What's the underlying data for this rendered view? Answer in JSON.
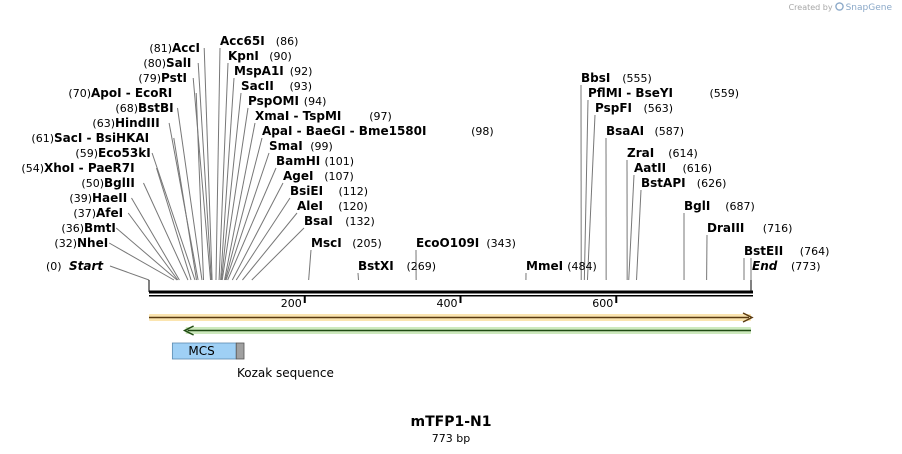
{
  "credit": {
    "prefix": "Created by",
    "brand": "SnapGene"
  },
  "title": "mTFP1-N1",
  "subtitle": "773 bp",
  "map": {
    "length": 773,
    "ticks": [
      "200",
      "400",
      "600"
    ],
    "start": {
      "label": "Start",
      "pos": "(0)"
    },
    "end": {
      "label": "End",
      "pos": "(773)"
    },
    "sites": [
      {
        "id": "NheI",
        "parts": [
          {
            "name": "NheI"
          }
        ],
        "posText": "(32)",
        "bp": 32
      },
      {
        "id": "BmtI",
        "parts": [
          {
            "name": "BmtI"
          }
        ],
        "posText": "(36)",
        "bp": 36
      },
      {
        "id": "AfeI",
        "parts": [
          {
            "name": "AfeI"
          }
        ],
        "posText": "(37)",
        "bp": 37
      },
      {
        "id": "HaeII",
        "parts": [
          {
            "name": "HaeII"
          }
        ],
        "posText": "(39)",
        "bp": 39
      },
      {
        "id": "BglII",
        "parts": [
          {
            "name": "BglII"
          }
        ],
        "posText": "(50)",
        "bp": 50
      },
      {
        "id": "XhoI",
        "parts": [
          {
            "name": "XhoI"
          },
          {
            "name": "PaeR7I"
          }
        ],
        "posText": "(54)",
        "bp": 54
      },
      {
        "id": "Eco53kI",
        "parts": [
          {
            "name": "Eco53kI"
          }
        ],
        "posText": "(59)",
        "bp": 59
      },
      {
        "id": "SacI",
        "parts": [
          {
            "name": "SacI"
          },
          {
            "name": "BsiHKAI"
          }
        ],
        "posText": "(61)",
        "bp": 61
      },
      {
        "id": "HindIII",
        "parts": [
          {
            "name": "HindIII"
          }
        ],
        "posText": "(63)",
        "bp": 63
      },
      {
        "id": "BstBI",
        "parts": [
          {
            "name": "BstBI"
          }
        ],
        "posText": "(68)",
        "bp": 68
      },
      {
        "id": "ApoI",
        "parts": [
          {
            "name": "ApoI"
          },
          {
            "name": "EcoRI"
          }
        ],
        "posText": "(70)",
        "bp": 70
      },
      {
        "id": "PstI",
        "parts": [
          {
            "name": "PstI"
          }
        ],
        "posText": "(79)",
        "bp": 79
      },
      {
        "id": "SalI",
        "parts": [
          {
            "name": "SalI"
          }
        ],
        "posText": "(80)",
        "bp": 80
      },
      {
        "id": "AccI",
        "parts": [
          {
            "name": "AccI"
          }
        ],
        "posText": "(81)",
        "bp": 81
      },
      {
        "id": "Acc65I",
        "parts": [
          {
            "name": "Acc65I"
          }
        ],
        "posText": "(86)",
        "bp": 86
      },
      {
        "id": "KpnI",
        "parts": [
          {
            "name": "KpnI"
          }
        ],
        "posText": "(90)",
        "bp": 90
      },
      {
        "id": "MspA1I",
        "parts": [
          {
            "name": "MspA1I"
          }
        ],
        "posText": "(92)",
        "bp": 92
      },
      {
        "id": "SacII",
        "parts": [
          {
            "name": "SacII"
          }
        ],
        "posText": "(93)",
        "bp": 93
      },
      {
        "id": "PspOMI",
        "parts": [
          {
            "name": "PspOMI"
          }
        ],
        "posText": "(94)",
        "bp": 94
      },
      {
        "id": "XmaI",
        "parts": [
          {
            "name": "XmaI"
          },
          {
            "name": "TspMI"
          }
        ],
        "posText": "(97)",
        "bp": 97
      },
      {
        "id": "ApaI",
        "parts": [
          {
            "name": "ApaI"
          },
          {
            "name": "BaeGI"
          },
          {
            "name": "Bme1580I"
          }
        ],
        "posText": "(98)",
        "bp": 98
      },
      {
        "id": "SmaI",
        "parts": [
          {
            "name": "SmaI"
          }
        ],
        "posText": "(99)",
        "bp": 99
      },
      {
        "id": "BamHI",
        "parts": [
          {
            "name": "BamHI"
          }
        ],
        "posText": "(101)",
        "bp": 101
      },
      {
        "id": "AgeI",
        "parts": [
          {
            "name": "AgeI"
          }
        ],
        "posText": "(107)",
        "bp": 107
      },
      {
        "id": "BsiEI",
        "parts": [
          {
            "name": "BsiEI"
          }
        ],
        "posText": "(112)",
        "bp": 112
      },
      {
        "id": "AleI",
        "parts": [
          {
            "name": "AleI"
          }
        ],
        "posText": "(120)",
        "bp": 120
      },
      {
        "id": "BsaI",
        "parts": [
          {
            "name": "BsaI"
          }
        ],
        "posText": "(132)",
        "bp": 132
      },
      {
        "id": "MscI",
        "parts": [
          {
            "name": "MscI"
          }
        ],
        "posText": "(205)",
        "bp": 205
      },
      {
        "id": "BstXI",
        "parts": [
          {
            "name": "BstXI"
          }
        ],
        "posText": "(269)",
        "bp": 269
      },
      {
        "id": "EcoO109I",
        "parts": [
          {
            "name": "EcoO109I"
          }
        ],
        "posText": "(343)",
        "bp": 343
      },
      {
        "id": "MmeI",
        "parts": [
          {
            "name": "MmeI"
          }
        ],
        "posText": "(484)",
        "bp": 484
      },
      {
        "id": "BbsI",
        "parts": [
          {
            "name": "BbsI"
          }
        ],
        "posText": "(555)",
        "bp": 555
      },
      {
        "id": "PflMI",
        "parts": [
          {
            "name": "PflMI"
          },
          {
            "name": "BseYI"
          }
        ],
        "posText": "(559)",
        "bp": 559
      },
      {
        "id": "PspFI",
        "parts": [
          {
            "name": "PspFI"
          }
        ],
        "posText": "(563)",
        "bp": 563
      },
      {
        "id": "BsaAI",
        "parts": [
          {
            "name": "BsaAI"
          }
        ],
        "posText": "(587)",
        "bp": 587
      },
      {
        "id": "ZraI",
        "parts": [
          {
            "name": "ZraI"
          }
        ],
        "posText": "(614)",
        "bp": 614
      },
      {
        "id": "AatII",
        "parts": [
          {
            "name": "AatII"
          }
        ],
        "posText": "(616)",
        "bp": 616
      },
      {
        "id": "BstAPI",
        "parts": [
          {
            "name": "BstAPI"
          }
        ],
        "posText": "(626)",
        "bp": 626
      },
      {
        "id": "BglI",
        "parts": [
          {
            "name": "BglI"
          }
        ],
        "posText": "(687)",
        "bp": 687
      },
      {
        "id": "DraIII",
        "parts": [
          {
            "name": "DraIII"
          }
        ],
        "posText": "(716)",
        "bp": 716
      },
      {
        "id": "BstEII",
        "parts": [
          {
            "name": "BstEII"
          }
        ],
        "posText": "(764)",
        "bp": 764
      }
    ],
    "features": [
      {
        "id": "orange-arrow",
        "from": 0,
        "to": 773,
        "color": "#f2b24a",
        "fill": "#fbe5b0",
        "direction": "forward"
      },
      {
        "id": "green-arrow",
        "from": 47,
        "to": 773,
        "color": "#6cc24a",
        "fill": "#cde9bd",
        "direction": "reverse"
      },
      {
        "id": "MCS",
        "label": "MCS",
        "from": 30,
        "to": 112,
        "color": "#9fd0f5"
      },
      {
        "id": "Kozak",
        "label": "Kozak sequence",
        "from": 112,
        "to": 122,
        "color": "#a0a0a0"
      }
    ]
  },
  "colors": {
    "backbone": "#000000",
    "leader": "#777777"
  }
}
